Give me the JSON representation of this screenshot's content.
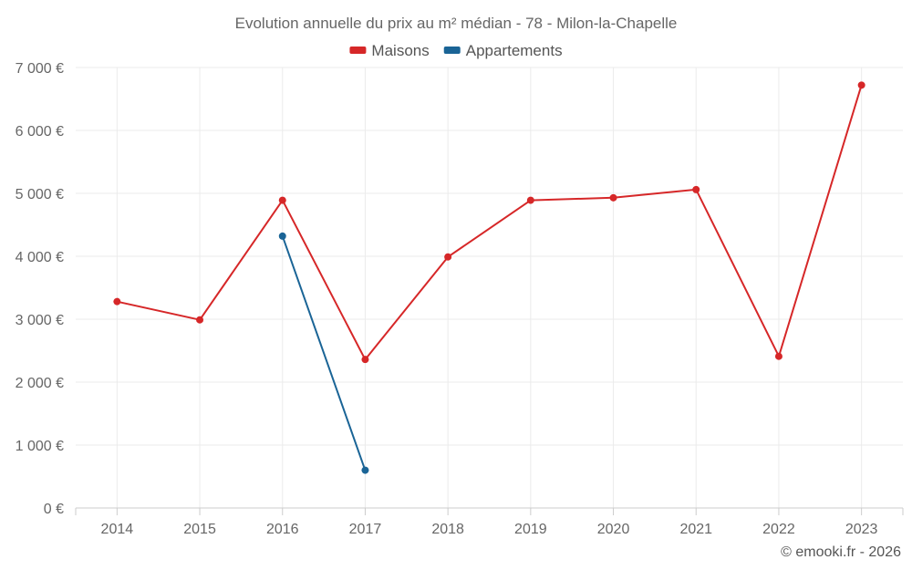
{
  "chart_data": {
    "type": "line",
    "title": "Evolution annuelle du prix au m² médian - 78 - Milon-la-Chapelle",
    "x": [
      "2014",
      "2015",
      "2016",
      "2017",
      "2018",
      "2019",
      "2020",
      "2021",
      "2022",
      "2023"
    ],
    "series": [
      {
        "name": "Maisons",
        "color": "#d62728",
        "values": [
          3280,
          2990,
          4890,
          2360,
          3990,
          4890,
          4930,
          5060,
          2410,
          6720
        ]
      },
      {
        "name": "Appartements",
        "color": "#1a6496",
        "values": [
          null,
          null,
          4320,
          600,
          null,
          null,
          null,
          null,
          null,
          null
        ]
      }
    ],
    "ylim": [
      0,
      7000
    ],
    "yticks": [
      0,
      1000,
      2000,
      3000,
      4000,
      5000,
      6000,
      7000
    ],
    "ytick_labels": [
      "0 €",
      "1 000 €",
      "2 000 €",
      "3 000 €",
      "4 000 €",
      "5 000 €",
      "6 000 €",
      "7 000 €"
    ],
    "legend_position": "top-center",
    "grid": true
  },
  "footer": {
    "credit": "© emooki.fr - 2026"
  }
}
